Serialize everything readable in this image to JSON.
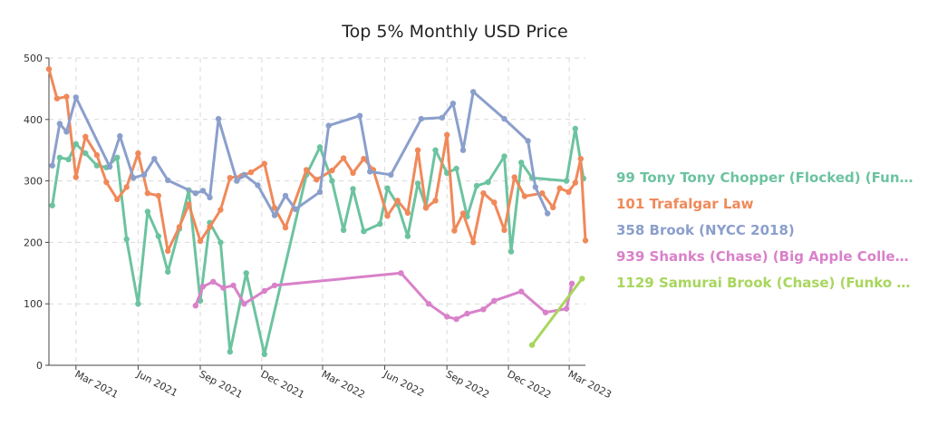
{
  "chart_data": {
    "type": "line",
    "title": "Top 5% Monthly USD Price",
    "xlabel": "",
    "ylabel": "",
    "ylim": [
      0,
      500
    ],
    "xlim": [
      "2021-01-20",
      "2023-03-25"
    ],
    "y_ticks": [
      0,
      100,
      200,
      300,
      400,
      500
    ],
    "x_ticks": [
      {
        "label": "Mar 2021",
        "date": "2021-03-01"
      },
      {
        "label": "Jun 2021",
        "date": "2021-06-01"
      },
      {
        "label": "Sep 2021",
        "date": "2021-09-01"
      },
      {
        "label": "Dec 2021",
        "date": "2021-12-01"
      },
      {
        "label": "Mar 2022",
        "date": "2022-03-01"
      },
      {
        "label": "Jun 2022",
        "date": "2022-06-01"
      },
      {
        "label": "Sep 2022",
        "date": "2022-09-01"
      },
      {
        "label": "Dec 2022",
        "date": "2022-12-01"
      },
      {
        "label": "Mar 2023",
        "date": "2023-03-01"
      }
    ],
    "grid": true,
    "legend_position": "right",
    "series": [
      {
        "name": "99 Tony Tony Chopper (Flocked) (Funi...",
        "color": "#6cc3a0",
        "points": [
          [
            "2021-01-25",
            260
          ],
          [
            "2021-02-05",
            338
          ],
          [
            "2021-02-18",
            335
          ],
          [
            "2021-03-01",
            360
          ],
          [
            "2021-03-15",
            345
          ],
          [
            "2021-04-01",
            325
          ],
          [
            "2021-04-15",
            322
          ],
          [
            "2021-05-01",
            338
          ],
          [
            "2021-05-15",
            205
          ],
          [
            "2021-06-01",
            100
          ],
          [
            "2021-06-15",
            250
          ],
          [
            "2021-07-01",
            210
          ],
          [
            "2021-07-15",
            152
          ],
          [
            "2021-08-01",
            222
          ],
          [
            "2021-08-15",
            285
          ],
          [
            "2021-09-01",
            105
          ],
          [
            "2021-09-15",
            232
          ],
          [
            "2021-10-01",
            200
          ],
          [
            "2021-10-15",
            22
          ],
          [
            "2021-11-08",
            150
          ],
          [
            "2021-12-05",
            18
          ],
          [
            "2022-02-05",
            310
          ],
          [
            "2022-02-25",
            355
          ],
          [
            "2022-03-15",
            300
          ],
          [
            "2022-04-01",
            220
          ],
          [
            "2022-04-15",
            287
          ],
          [
            "2022-05-01",
            218
          ],
          [
            "2022-05-25",
            230
          ],
          [
            "2022-06-05",
            288
          ],
          [
            "2022-06-20",
            262
          ],
          [
            "2022-07-05",
            210
          ],
          [
            "2022-07-20",
            296
          ],
          [
            "2022-08-01",
            258
          ],
          [
            "2022-08-15",
            350
          ],
          [
            "2022-09-01",
            313
          ],
          [
            "2022-09-15",
            320
          ],
          [
            "2022-10-01",
            242
          ],
          [
            "2022-10-15",
            292
          ],
          [
            "2022-11-01",
            298
          ],
          [
            "2022-11-25",
            340
          ],
          [
            "2022-12-05",
            185
          ],
          [
            "2022-12-20",
            330
          ],
          [
            "2023-01-05",
            305
          ],
          [
            "2023-02-25",
            300
          ],
          [
            "2023-03-10",
            385
          ],
          [
            "2023-03-22",
            304
          ]
        ]
      },
      {
        "name": "101 Trafalgar Law",
        "color": "#f0895a",
        "points": [
          [
            "2021-01-20",
            482
          ],
          [
            "2021-02-01",
            434
          ],
          [
            "2021-02-15",
            437
          ],
          [
            "2021-03-01",
            306
          ],
          [
            "2021-03-15",
            372
          ],
          [
            "2021-04-01",
            342
          ],
          [
            "2021-04-15",
            298
          ],
          [
            "2021-05-01",
            270
          ],
          [
            "2021-05-15",
            290
          ],
          [
            "2021-06-01",
            345
          ],
          [
            "2021-06-15",
            280
          ],
          [
            "2021-07-01",
            276
          ],
          [
            "2021-07-15",
            186
          ],
          [
            "2021-08-01",
            225
          ],
          [
            "2021-08-15",
            262
          ],
          [
            "2021-09-01",
            202
          ],
          [
            "2021-09-15",
            225
          ],
          [
            "2021-10-01",
            253
          ],
          [
            "2021-10-15",
            305
          ],
          [
            "2021-11-01",
            308
          ],
          [
            "2021-11-15",
            314
          ],
          [
            "2021-12-05",
            328
          ],
          [
            "2021-12-20",
            256
          ],
          [
            "2022-01-05",
            224
          ],
          [
            "2022-02-05",
            318
          ],
          [
            "2022-02-20",
            302
          ],
          [
            "2022-03-15",
            317
          ],
          [
            "2022-04-01",
            337
          ],
          [
            "2022-04-15",
            313
          ],
          [
            "2022-05-01",
            336
          ],
          [
            "2022-05-15",
            318
          ],
          [
            "2022-06-05",
            243
          ],
          [
            "2022-06-20",
            268
          ],
          [
            "2022-07-05",
            248
          ],
          [
            "2022-07-20",
            350
          ],
          [
            "2022-08-01",
            256
          ],
          [
            "2022-08-15",
            268
          ],
          [
            "2022-09-01",
            375
          ],
          [
            "2022-09-12",
            219
          ],
          [
            "2022-09-25",
            247
          ],
          [
            "2022-10-10",
            200
          ],
          [
            "2022-10-25",
            280
          ],
          [
            "2022-11-10",
            265
          ],
          [
            "2022-11-25",
            220
          ],
          [
            "2022-12-10",
            306
          ],
          [
            "2022-12-25",
            275
          ],
          [
            "2023-01-20",
            280
          ],
          [
            "2023-02-05",
            257
          ],
          [
            "2023-02-15",
            288
          ],
          [
            "2023-02-28",
            282
          ],
          [
            "2023-03-10",
            297
          ],
          [
            "2023-03-18",
            336
          ],
          [
            "2023-03-25",
            203
          ]
        ]
      },
      {
        "name": "358 Brook (NYCC 2018)",
        "color": "#8b9fcc",
        "points": [
          [
            "2021-01-25",
            325
          ],
          [
            "2021-02-05",
            393
          ],
          [
            "2021-02-15",
            380
          ],
          [
            "2021-03-01",
            436
          ],
          [
            "2021-04-20",
            323
          ],
          [
            "2021-05-05",
            373
          ],
          [
            "2021-05-25",
            305
          ],
          [
            "2021-06-10",
            310
          ],
          [
            "2021-06-25",
            336
          ],
          [
            "2021-07-15",
            301
          ],
          [
            "2021-08-25",
            280
          ],
          [
            "2021-09-05",
            284
          ],
          [
            "2021-09-15",
            273
          ],
          [
            "2021-09-28",
            401
          ],
          [
            "2021-10-25",
            300
          ],
          [
            "2021-11-05",
            310
          ],
          [
            "2021-11-25",
            293
          ],
          [
            "2021-12-20",
            244
          ],
          [
            "2022-01-05",
            276
          ],
          [
            "2022-01-20",
            254
          ],
          [
            "2022-02-25",
            282
          ],
          [
            "2022-03-10",
            390
          ],
          [
            "2022-04-25",
            406
          ],
          [
            "2022-05-10",
            315
          ],
          [
            "2022-06-10",
            310
          ],
          [
            "2022-07-25",
            401
          ],
          [
            "2022-08-25",
            403
          ],
          [
            "2022-09-10",
            426
          ],
          [
            "2022-09-25",
            350
          ],
          [
            "2022-10-10",
            445
          ],
          [
            "2022-11-25",
            401
          ],
          [
            "2022-12-30",
            365
          ],
          [
            "2023-01-10",
            290
          ],
          [
            "2023-01-28",
            247
          ]
        ]
      },
      {
        "name": "939 Shanks (Chase) (Big Apple Collecti...",
        "color": "#d981c9",
        "points": [
          [
            "2021-08-25",
            97
          ],
          [
            "2021-09-05",
            128
          ],
          [
            "2021-09-20",
            136
          ],
          [
            "2021-10-05",
            126
          ],
          [
            "2021-10-20",
            130
          ],
          [
            "2021-11-05",
            100
          ],
          [
            "2021-12-05",
            121
          ],
          [
            "2021-12-20",
            130
          ],
          [
            "2022-06-25",
            150
          ],
          [
            "2022-08-05",
            100
          ],
          [
            "2022-09-01",
            79
          ],
          [
            "2022-09-15",
            75
          ],
          [
            "2022-10-01",
            84
          ],
          [
            "2022-10-25",
            91
          ],
          [
            "2022-11-10",
            105
          ],
          [
            "2022-12-20",
            120
          ],
          [
            "2023-01-25",
            86
          ],
          [
            "2023-02-25",
            92
          ],
          [
            "2023-03-05",
            133
          ]
        ]
      },
      {
        "name": "1129 Samurai Brook (Chase) (Funko Sh...",
        "color": "#a8d65e",
        "points": [
          [
            "2023-01-05",
            33
          ],
          [
            "2023-03-20",
            141
          ]
        ]
      }
    ]
  }
}
